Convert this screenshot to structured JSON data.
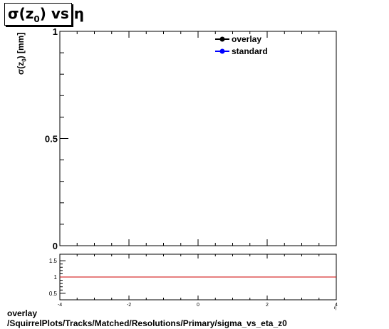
{
  "chart_data": [
    {
      "type": "line",
      "title": "σ(z₀) vs η",
      "title_parts": {
        "prefix": "σ(z",
        "sub": "0",
        "suffix": ") vs  η"
      },
      "ylabel": "σ(z₀) [mm]",
      "ylabel_parts": {
        "prefix": "σ(z",
        "sub": "0",
        "suffix": ") [mm]"
      },
      "ylim": [
        0,
        1
      ],
      "yticks": [
        0,
        0.5,
        1
      ],
      "ytick_labels": [
        "0",
        "0.5",
        "1"
      ],
      "series": [
        {
          "name": "overlay",
          "color": "#000000",
          "values": []
        },
        {
          "name": "standard",
          "color": "#0000ff",
          "values": []
        }
      ],
      "legend_position": "top-right"
    },
    {
      "type": "line",
      "xlim": [
        -4,
        4
      ],
      "ylim": [
        0.3,
        1.7
      ],
      "xticks": [
        -4,
        -2,
        0,
        2,
        4
      ],
      "xtick_labels": [
        "-4",
        "-2",
        "0",
        "2",
        "4"
      ],
      "yticks": [
        0.5,
        1,
        1.5
      ],
      "ytick_labels": [
        "0.5",
        "1",
        "1.5"
      ],
      "reference_line": {
        "y": 1,
        "color": "#cc0000"
      }
    }
  ],
  "footer": {
    "line1": "overlay",
    "line2": "/SquirrelPlots/Tracks/Matched/Resolutions/Primary/sigma_vs_eta_z0"
  }
}
